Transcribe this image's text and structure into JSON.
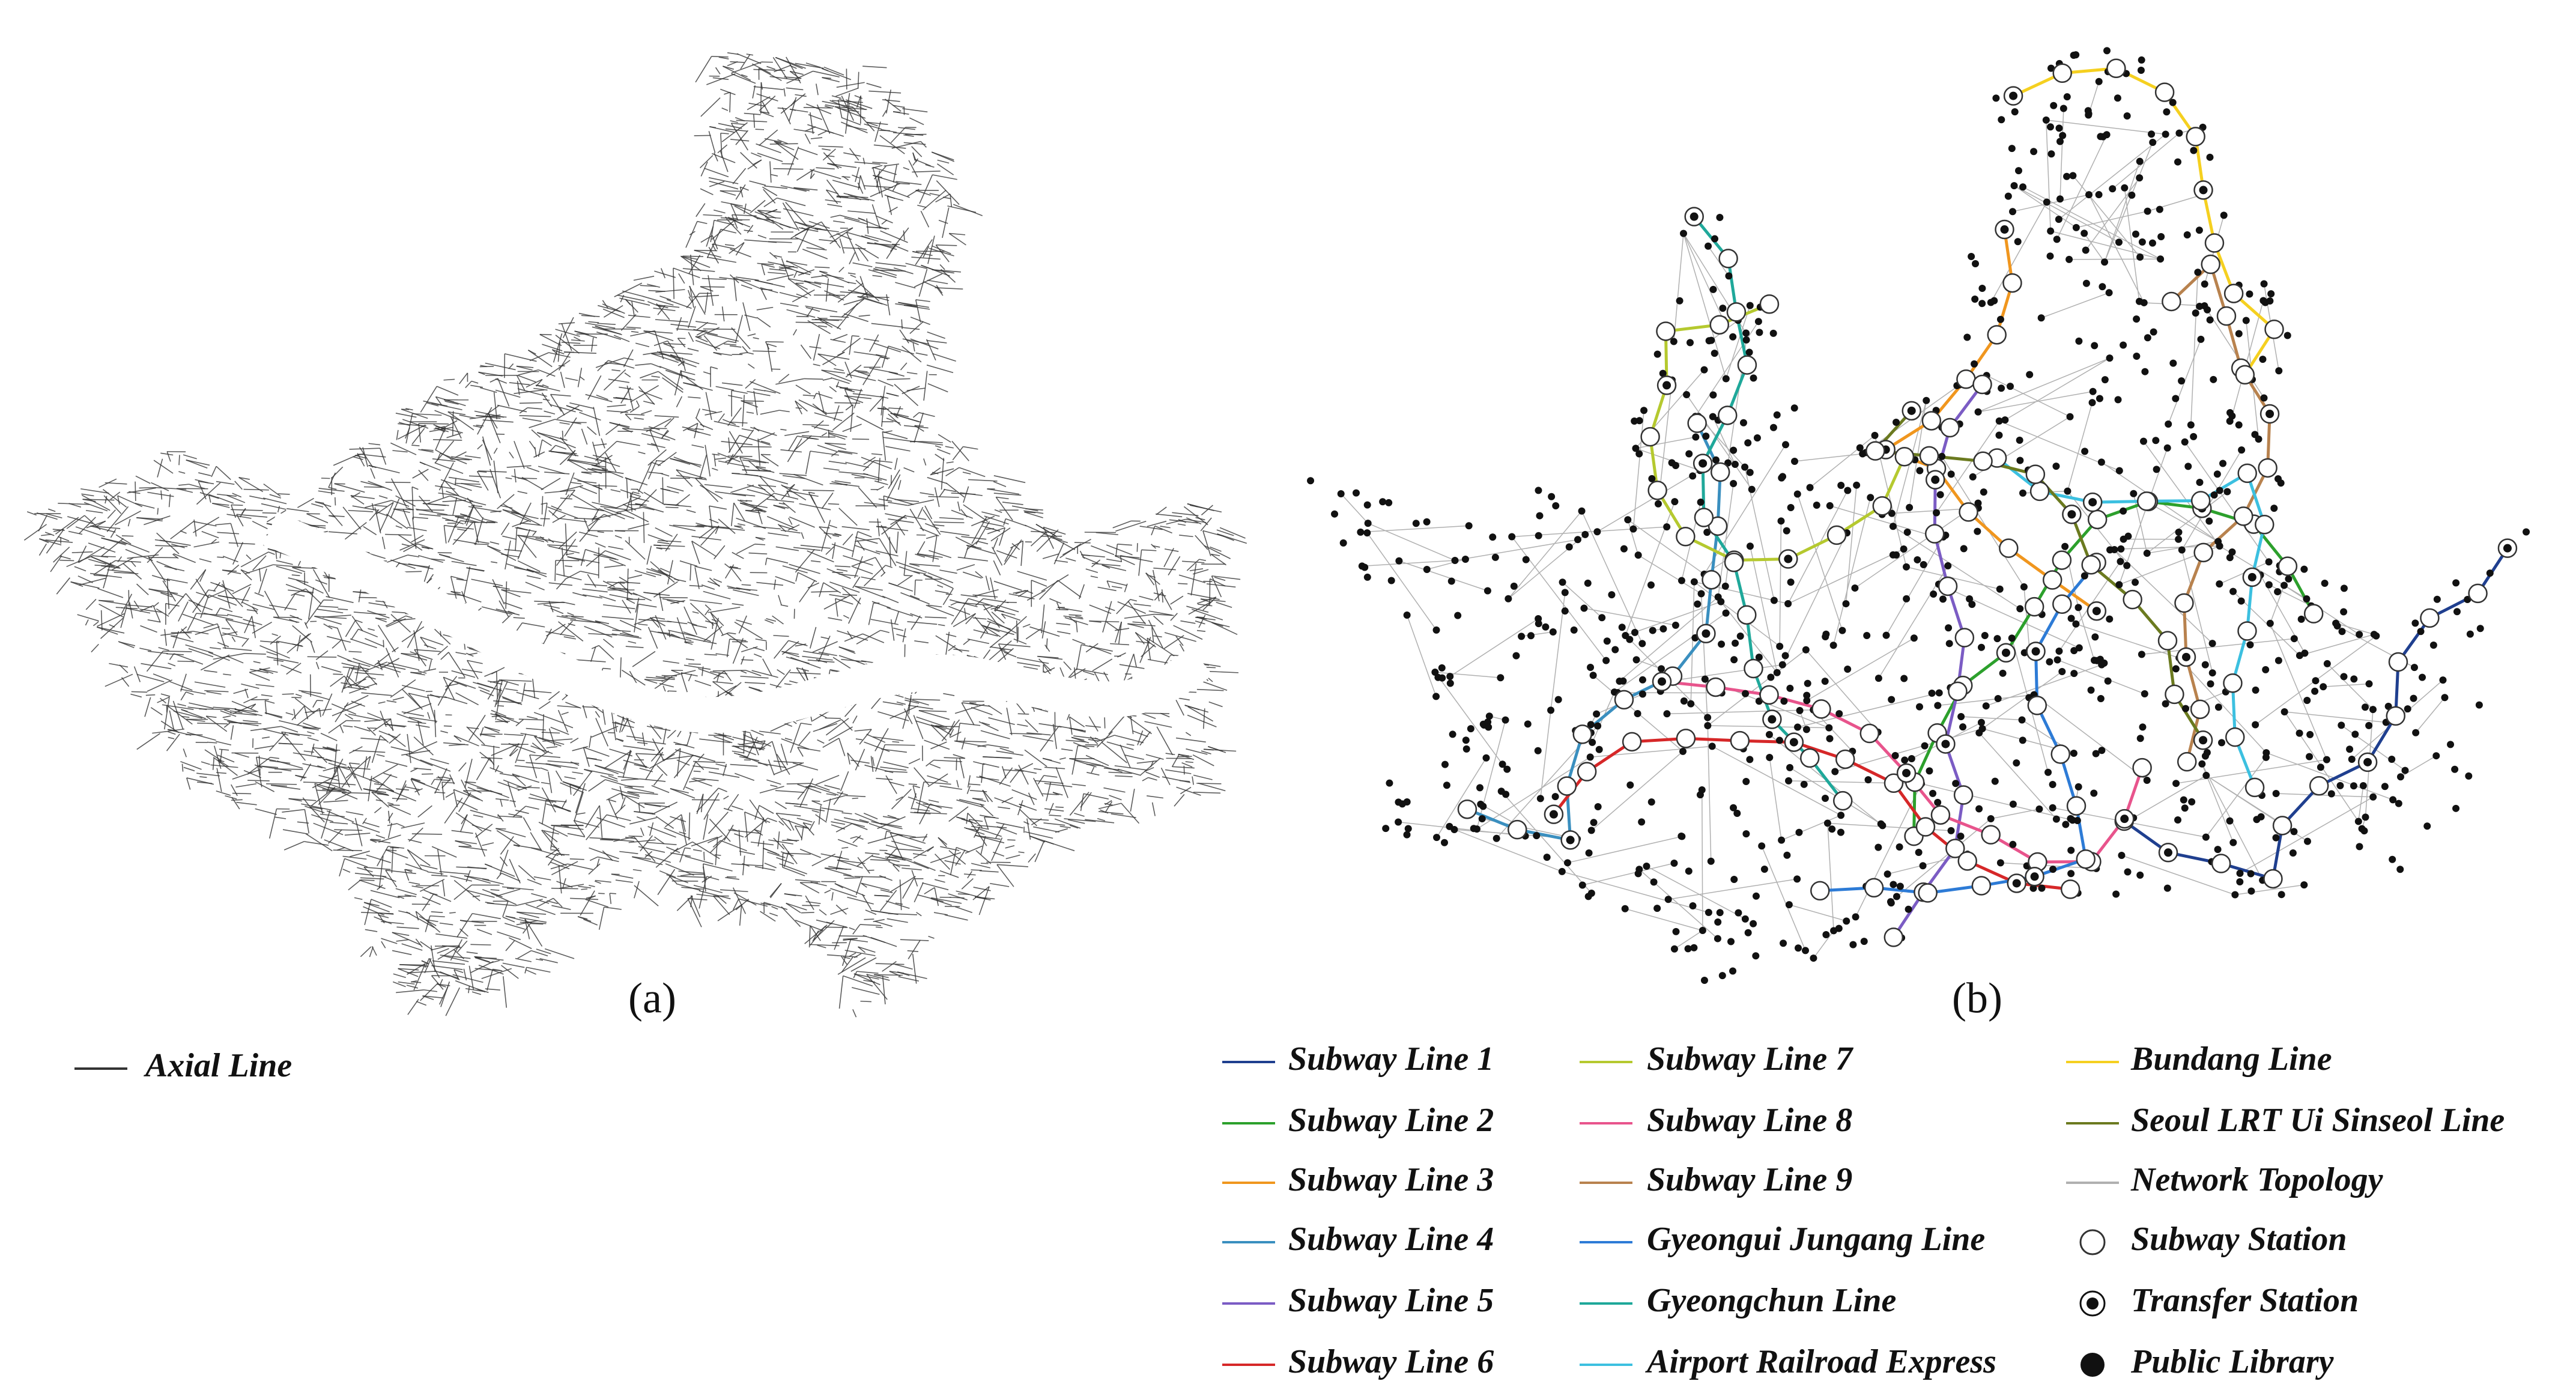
{
  "panels": [
    {
      "label": "(a)",
      "legend": [
        {
          "label": "Axial Line",
          "symbol": "line",
          "color": "#333333"
        }
      ]
    },
    {
      "label": "(b)",
      "legend": [
        {
          "label": "Subway Line 1",
          "symbol": "line",
          "color": "#1f3f8f"
        },
        {
          "label": "Subway Line 2",
          "symbol": "line",
          "color": "#2ca02c"
        },
        {
          "label": "Subway Line 3",
          "symbol": "line",
          "color": "#f0961e"
        },
        {
          "label": "Subway Line 4",
          "symbol": "line",
          "color": "#3a8fbf"
        },
        {
          "label": "Subway Line 5",
          "symbol": "line",
          "color": "#7b5cc4"
        },
        {
          "label": "Subway Line 6",
          "symbol": "line",
          "color": "#d62728"
        },
        {
          "label": "Subway Line 7",
          "symbol": "line",
          "color": "#b5c92f"
        },
        {
          "label": "Subway Line 8",
          "symbol": "line",
          "color": "#e8548c"
        },
        {
          "label": "Subway Line 9",
          "symbol": "line",
          "color": "#b8824e"
        },
        {
          "label": "Gyeongui Jungang Line",
          "symbol": "line",
          "color": "#2d7bd6"
        },
        {
          "label": "Gyeongchun Line",
          "symbol": "line",
          "color": "#1fa89a"
        },
        {
          "label": "Airport Railroad Express",
          "symbol": "line",
          "color": "#3cc0e0"
        },
        {
          "label": "Bundang Line",
          "symbol": "line",
          "color": "#f5d020"
        },
        {
          "label": "Seoul LRT Ui Sinseol Line",
          "symbol": "line",
          "color": "#6b7a1f"
        },
        {
          "label": "Network Topology",
          "symbol": "line",
          "color": "#b0b0b0"
        },
        {
          "label": "Subway Station",
          "symbol": "station",
          "color": "#333333"
        },
        {
          "label": "Transfer Station",
          "symbol": "transfer",
          "color": "#111111"
        },
        {
          "label": "Public Library",
          "symbol": "library",
          "color": "#111111"
        }
      ]
    }
  ]
}
